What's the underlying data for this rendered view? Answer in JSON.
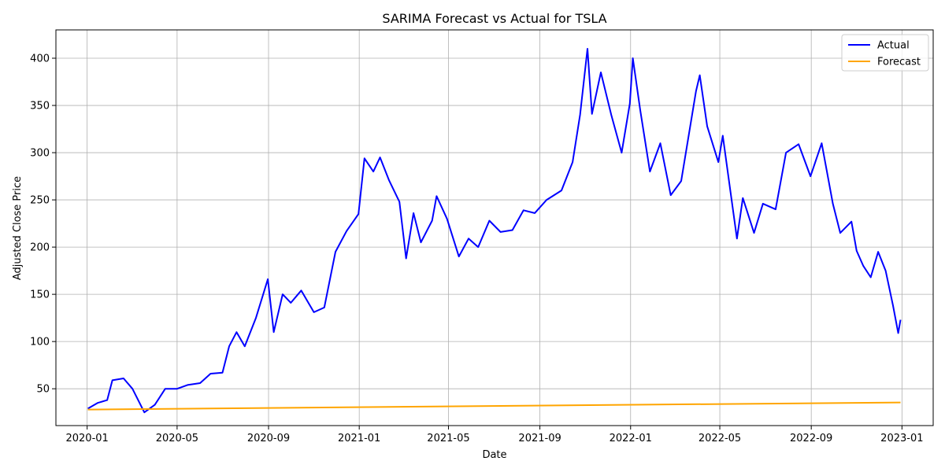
{
  "chart_data": {
    "type": "line",
    "title": "SARIMA Forecast vs Actual for TSLA",
    "xlabel": "Date",
    "ylabel": "Adjusted Close Price",
    "xlim": [
      "2019-11-20",
      "2023-02-12"
    ],
    "ylim": [
      11,
      430
    ],
    "x_ticks": [
      "2020-01",
      "2020-05",
      "2020-09",
      "2021-01",
      "2021-05",
      "2021-09",
      "2022-01",
      "2022-05",
      "2022-09",
      "2023-01"
    ],
    "y_ticks": [
      50,
      100,
      150,
      200,
      250,
      300,
      350,
      400
    ],
    "grid": true,
    "legend_position": "top-right",
    "series": [
      {
        "name": "Actual",
        "color": "#0000ff",
        "points": [
          [
            "2020-01-02",
            29
          ],
          [
            "2020-01-15",
            35
          ],
          [
            "2020-01-28",
            38
          ],
          [
            "2020-02-04",
            59
          ],
          [
            "2020-02-19",
            61
          ],
          [
            "2020-03-02",
            50
          ],
          [
            "2020-03-18",
            25
          ],
          [
            "2020-04-01",
            33
          ],
          [
            "2020-04-15",
            50
          ],
          [
            "2020-05-01",
            50
          ],
          [
            "2020-05-15",
            54
          ],
          [
            "2020-06-01",
            56
          ],
          [
            "2020-06-15",
            66
          ],
          [
            "2020-07-01",
            67
          ],
          [
            "2020-07-10",
            95
          ],
          [
            "2020-07-20",
            110
          ],
          [
            "2020-07-31",
            95
          ],
          [
            "2020-08-15",
            125
          ],
          [
            "2020-08-31",
            166
          ],
          [
            "2020-09-08",
            110
          ],
          [
            "2020-09-20",
            150
          ],
          [
            "2020-10-01",
            141
          ],
          [
            "2020-10-15",
            154
          ],
          [
            "2020-11-01",
            131
          ],
          [
            "2020-11-15",
            136
          ],
          [
            "2020-11-30",
            195
          ],
          [
            "2020-12-15",
            217
          ],
          [
            "2020-12-31",
            235
          ],
          [
            "2021-01-08",
            294
          ],
          [
            "2021-01-20",
            280
          ],
          [
            "2021-01-29",
            295
          ],
          [
            "2021-02-10",
            271
          ],
          [
            "2021-02-24",
            248
          ],
          [
            "2021-03-05",
            188
          ],
          [
            "2021-03-15",
            236
          ],
          [
            "2021-03-25",
            205
          ],
          [
            "2021-04-09",
            228
          ],
          [
            "2021-04-15",
            254
          ],
          [
            "2021-04-29",
            230
          ],
          [
            "2021-05-15",
            190
          ],
          [
            "2021-05-28",
            209
          ],
          [
            "2021-06-10",
            200
          ],
          [
            "2021-06-25",
            228
          ],
          [
            "2021-07-10",
            216
          ],
          [
            "2021-07-26",
            218
          ],
          [
            "2021-08-10",
            239
          ],
          [
            "2021-08-25",
            236
          ],
          [
            "2021-09-10",
            250
          ],
          [
            "2021-09-30",
            260
          ],
          [
            "2021-10-15",
            290
          ],
          [
            "2021-10-25",
            340
          ],
          [
            "2021-11-04",
            410
          ],
          [
            "2021-11-10",
            341
          ],
          [
            "2021-11-22",
            385
          ],
          [
            "2021-12-06",
            340
          ],
          [
            "2021-12-20",
            300
          ],
          [
            "2021-12-31",
            352
          ],
          [
            "2022-01-04",
            400
          ],
          [
            "2022-01-14",
            345
          ],
          [
            "2022-01-27",
            280
          ],
          [
            "2022-02-10",
            310
          ],
          [
            "2022-02-24",
            255
          ],
          [
            "2022-03-10",
            270
          ],
          [
            "2022-03-30",
            365
          ],
          [
            "2022-04-04",
            382
          ],
          [
            "2022-04-14",
            328
          ],
          [
            "2022-04-29",
            290
          ],
          [
            "2022-05-05",
            318
          ],
          [
            "2022-05-24",
            209
          ],
          [
            "2022-06-01",
            252
          ],
          [
            "2022-06-16",
            215
          ],
          [
            "2022-06-28",
            246
          ],
          [
            "2022-07-15",
            240
          ],
          [
            "2022-07-29",
            300
          ],
          [
            "2022-08-15",
            309
          ],
          [
            "2022-08-31",
            275
          ],
          [
            "2022-09-15",
            310
          ],
          [
            "2022-09-30",
            246
          ],
          [
            "2022-10-10",
            215
          ],
          [
            "2022-10-25",
            227
          ],
          [
            "2022-11-01",
            196
          ],
          [
            "2022-11-10",
            180
          ],
          [
            "2022-11-20",
            168
          ],
          [
            "2022-11-30",
            195
          ],
          [
            "2022-12-10",
            175
          ],
          [
            "2022-12-20",
            138
          ],
          [
            "2022-12-27",
            109
          ],
          [
            "2022-12-30",
            123
          ]
        ]
      },
      {
        "name": "Forecast",
        "color": "#ffa500",
        "points": [
          [
            "2020-01-02",
            28
          ],
          [
            "2022-12-30",
            35.5
          ]
        ]
      }
    ]
  }
}
